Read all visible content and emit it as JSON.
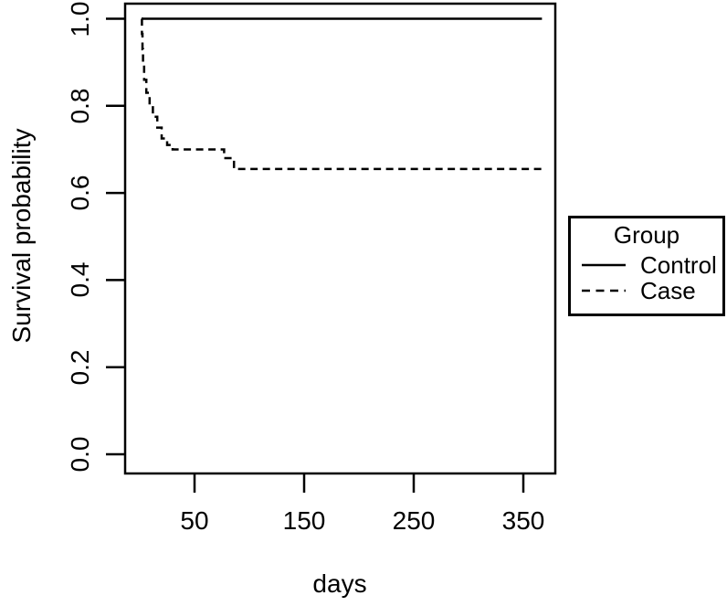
{
  "figure": {
    "background": "#ffffff",
    "foreground": "#000000"
  },
  "chart_data": {
    "type": "line",
    "subtype": "kaplan-meier-step",
    "title": "",
    "xlabel": "days",
    "ylabel": "Survival probability",
    "x_tick_labels": [
      "50",
      "150",
      "250",
      "350"
    ],
    "y_tick_labels": [
      "0.0",
      "0.2",
      "0.4",
      "0.6",
      "0.8",
      "1.0"
    ],
    "x_range": [
      -13,
      379
    ],
    "y_range": [
      -0.04,
      1.04
    ],
    "grid": false,
    "line_color": "#000000",
    "series": [
      {
        "name": "Control",
        "line_style": "solid",
        "points": [
          [
            1.7,
            1.0
          ],
          [
            367,
            1.0
          ]
        ]
      },
      {
        "name": "Case",
        "line_style": "dashed",
        "points": [
          [
            1.7,
            1.0
          ],
          [
            2,
            0.965
          ],
          [
            2.5,
            0.93
          ],
          [
            3,
            0.895
          ],
          [
            4,
            0.86
          ],
          [
            6,
            0.83
          ],
          [
            9,
            0.8
          ],
          [
            12,
            0.775
          ],
          [
            16,
            0.75
          ],
          [
            20,
            0.725
          ],
          [
            25,
            0.71
          ],
          [
            30,
            0.7
          ],
          [
            77,
            0.68
          ],
          [
            86,
            0.655
          ],
          [
            368,
            0.655
          ]
        ]
      }
    ],
    "legend": {
      "title": "Group",
      "position": "right-outside",
      "entries": [
        {
          "label": "Control",
          "line_style": "solid"
        },
        {
          "label": "Case",
          "line_style": "dashed"
        }
      ]
    }
  }
}
